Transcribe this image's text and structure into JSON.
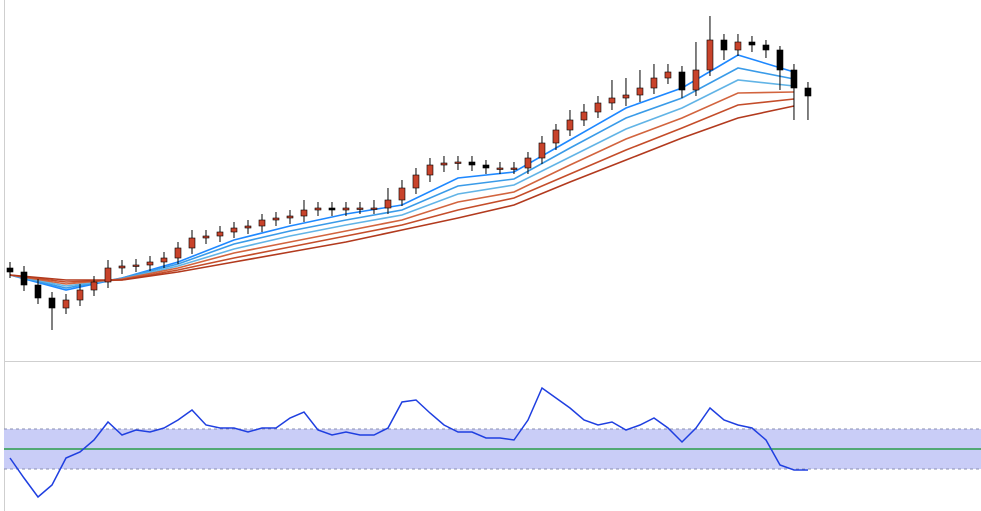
{
  "chart_data": [
    {
      "type": "candlestick",
      "xlim": [
        -0.714,
        69.36
      ],
      "ylim": [
        0,
        360
      ],
      "up_color": "#c8432b",
      "down_color": "#000000",
      "open": [
        92,
        88,
        75,
        62,
        52,
        60,
        70,
        78,
        92,
        94,
        95,
        98,
        102,
        112,
        122,
        124,
        128,
        132,
        134,
        140,
        142,
        144,
        150,
        152,
        150,
        152,
        152,
        152,
        160,
        172,
        185,
        195,
        197,
        198,
        195,
        192,
        192,
        192,
        202,
        217,
        230,
        240,
        248,
        257,
        262,
        265,
        272,
        282,
        288,
        270,
        290,
        320,
        310,
        318,
        315,
        310,
        290,
        272
      ],
      "high": [
        98,
        94,
        81,
        68,
        66,
        76,
        84,
        100,
        100,
        101,
        104,
        108,
        118,
        130,
        130,
        134,
        138,
        140,
        146,
        148,
        150,
        160,
        158,
        158,
        158,
        158,
        160,
        172,
        180,
        192,
        202,
        204,
        204,
        204,
        200,
        198,
        198,
        208,
        224,
        236,
        250,
        256,
        264,
        280,
        282,
        290,
        296,
        296,
        294,
        318,
        344,
        326,
        326,
        324,
        320,
        314,
        296,
        278
      ],
      "low": [
        82,
        69,
        56,
        30,
        46,
        54,
        64,
        72,
        86,
        88,
        89,
        92,
        96,
        106,
        116,
        118,
        122,
        126,
        128,
        134,
        136,
        138,
        144,
        144,
        144,
        146,
        146,
        146,
        154,
        166,
        178,
        188,
        190,
        189,
        186,
        186,
        186,
        186,
        196,
        210,
        224,
        234,
        242,
        250,
        254,
        258,
        266,
        276,
        262,
        264,
        284,
        300,
        304,
        308,
        302,
        270,
        240,
        240
      ],
      "close": [
        88,
        75,
        62,
        52,
        60,
        70,
        78,
        92,
        94,
        95,
        98,
        102,
        112,
        122,
        124,
        128,
        132,
        134,
        140,
        142,
        144,
        150,
        152,
        150,
        152,
        152,
        152,
        160,
        172,
        185,
        195,
        197,
        198,
        195,
        192,
        192,
        192,
        202,
        217,
        230,
        240,
        248,
        257,
        262,
        265,
        272,
        282,
        288,
        270,
        290,
        320,
        310,
        318,
        315,
        310,
        290,
        272,
        264
      ],
      "series": [
        {
          "color": "#1e88ff",
          "x": [
            0,
            4,
            8,
            12,
            16,
            20,
            24,
            28,
            32,
            36,
            40,
            44,
            48,
            52,
            56
          ],
          "values": [
            85,
            70,
            82,
            98,
            120,
            134,
            146,
            155,
            182,
            188,
            220,
            252,
            272,
            305,
            288
          ]
        },
        {
          "color": "#3a9be8",
          "x": [
            0,
            4,
            8,
            12,
            16,
            20,
            24,
            28,
            32,
            36,
            40,
            44,
            48,
            52,
            56
          ],
          "values": [
            85,
            72,
            82,
            96,
            116,
            129,
            140,
            150,
            174,
            181,
            212,
            242,
            262,
            292,
            281
          ]
        },
        {
          "color": "#62b4e6",
          "x": [
            0,
            4,
            8,
            12,
            16,
            20,
            24,
            28,
            32,
            36,
            40,
            44,
            48,
            52,
            56
          ],
          "values": [
            85,
            74,
            81,
            94,
            111,
            124,
            135,
            145,
            166,
            175,
            203,
            231,
            252,
            280,
            274
          ]
        },
        {
          "color": "#d2643e",
          "x": [
            0,
            4,
            8,
            12,
            16,
            20,
            24,
            28,
            32,
            36,
            40,
            44,
            48,
            52,
            56
          ],
          "values": [
            85,
            76,
            81,
            92,
            107,
            118,
            129,
            140,
            158,
            168,
            195,
            221,
            242,
            267,
            268
          ]
        },
        {
          "color": "#c44d2a",
          "x": [
            0,
            4,
            8,
            12,
            16,
            20,
            24,
            28,
            32,
            36,
            40,
            44,
            48,
            52,
            56
          ],
          "values": [
            85,
            78,
            80,
            90,
            102,
            113,
            124,
            135,
            150,
            162,
            186,
            210,
            232,
            255,
            261
          ]
        },
        {
          "color": "#b23a1e",
          "x": [
            0,
            4,
            8,
            12,
            16,
            20,
            24,
            28,
            32,
            36,
            40,
            44,
            48,
            52,
            56
          ],
          "values": [
            85,
            80,
            80,
            88,
            98,
            108,
            118,
            130,
            142,
            155,
            178,
            200,
            222,
            242,
            254
          ]
        }
      ]
    },
    {
      "type": "line",
      "xlim": [
        -0.714,
        69.36
      ],
      "ylim": [
        -3.1,
        3.6
      ],
      "color": "#1f3fe0",
      "band": [
        -1,
        1
      ],
      "band_color": "#c9cdf7",
      "midline": 0,
      "midline_color": "#2a9d4a",
      "values": [
        -0.45,
        -1.45,
        -2.4,
        -1.8,
        -0.45,
        -0.15,
        0.45,
        1.35,
        0.7,
        0.95,
        0.85,
        1.05,
        1.45,
        1.95,
        1.2,
        1.05,
        1.05,
        0.85,
        1.05,
        1.05,
        1.55,
        1.85,
        0.95,
        0.7,
        0.85,
        0.7,
        0.7,
        1.05,
        2.35,
        2.45,
        1.8,
        1.2,
        0.85,
        0.85,
        0.55,
        0.55,
        0.45,
        1.45,
        3.05,
        2.55,
        2.05,
        1.45,
        1.2,
        1.35,
        0.95,
        1.2,
        1.55,
        1.05,
        0.35,
        1.05,
        2.05,
        1.45,
        1.2,
        1.05,
        0.45,
        -0.8,
        -1.05,
        -1.05
      ]
    }
  ]
}
